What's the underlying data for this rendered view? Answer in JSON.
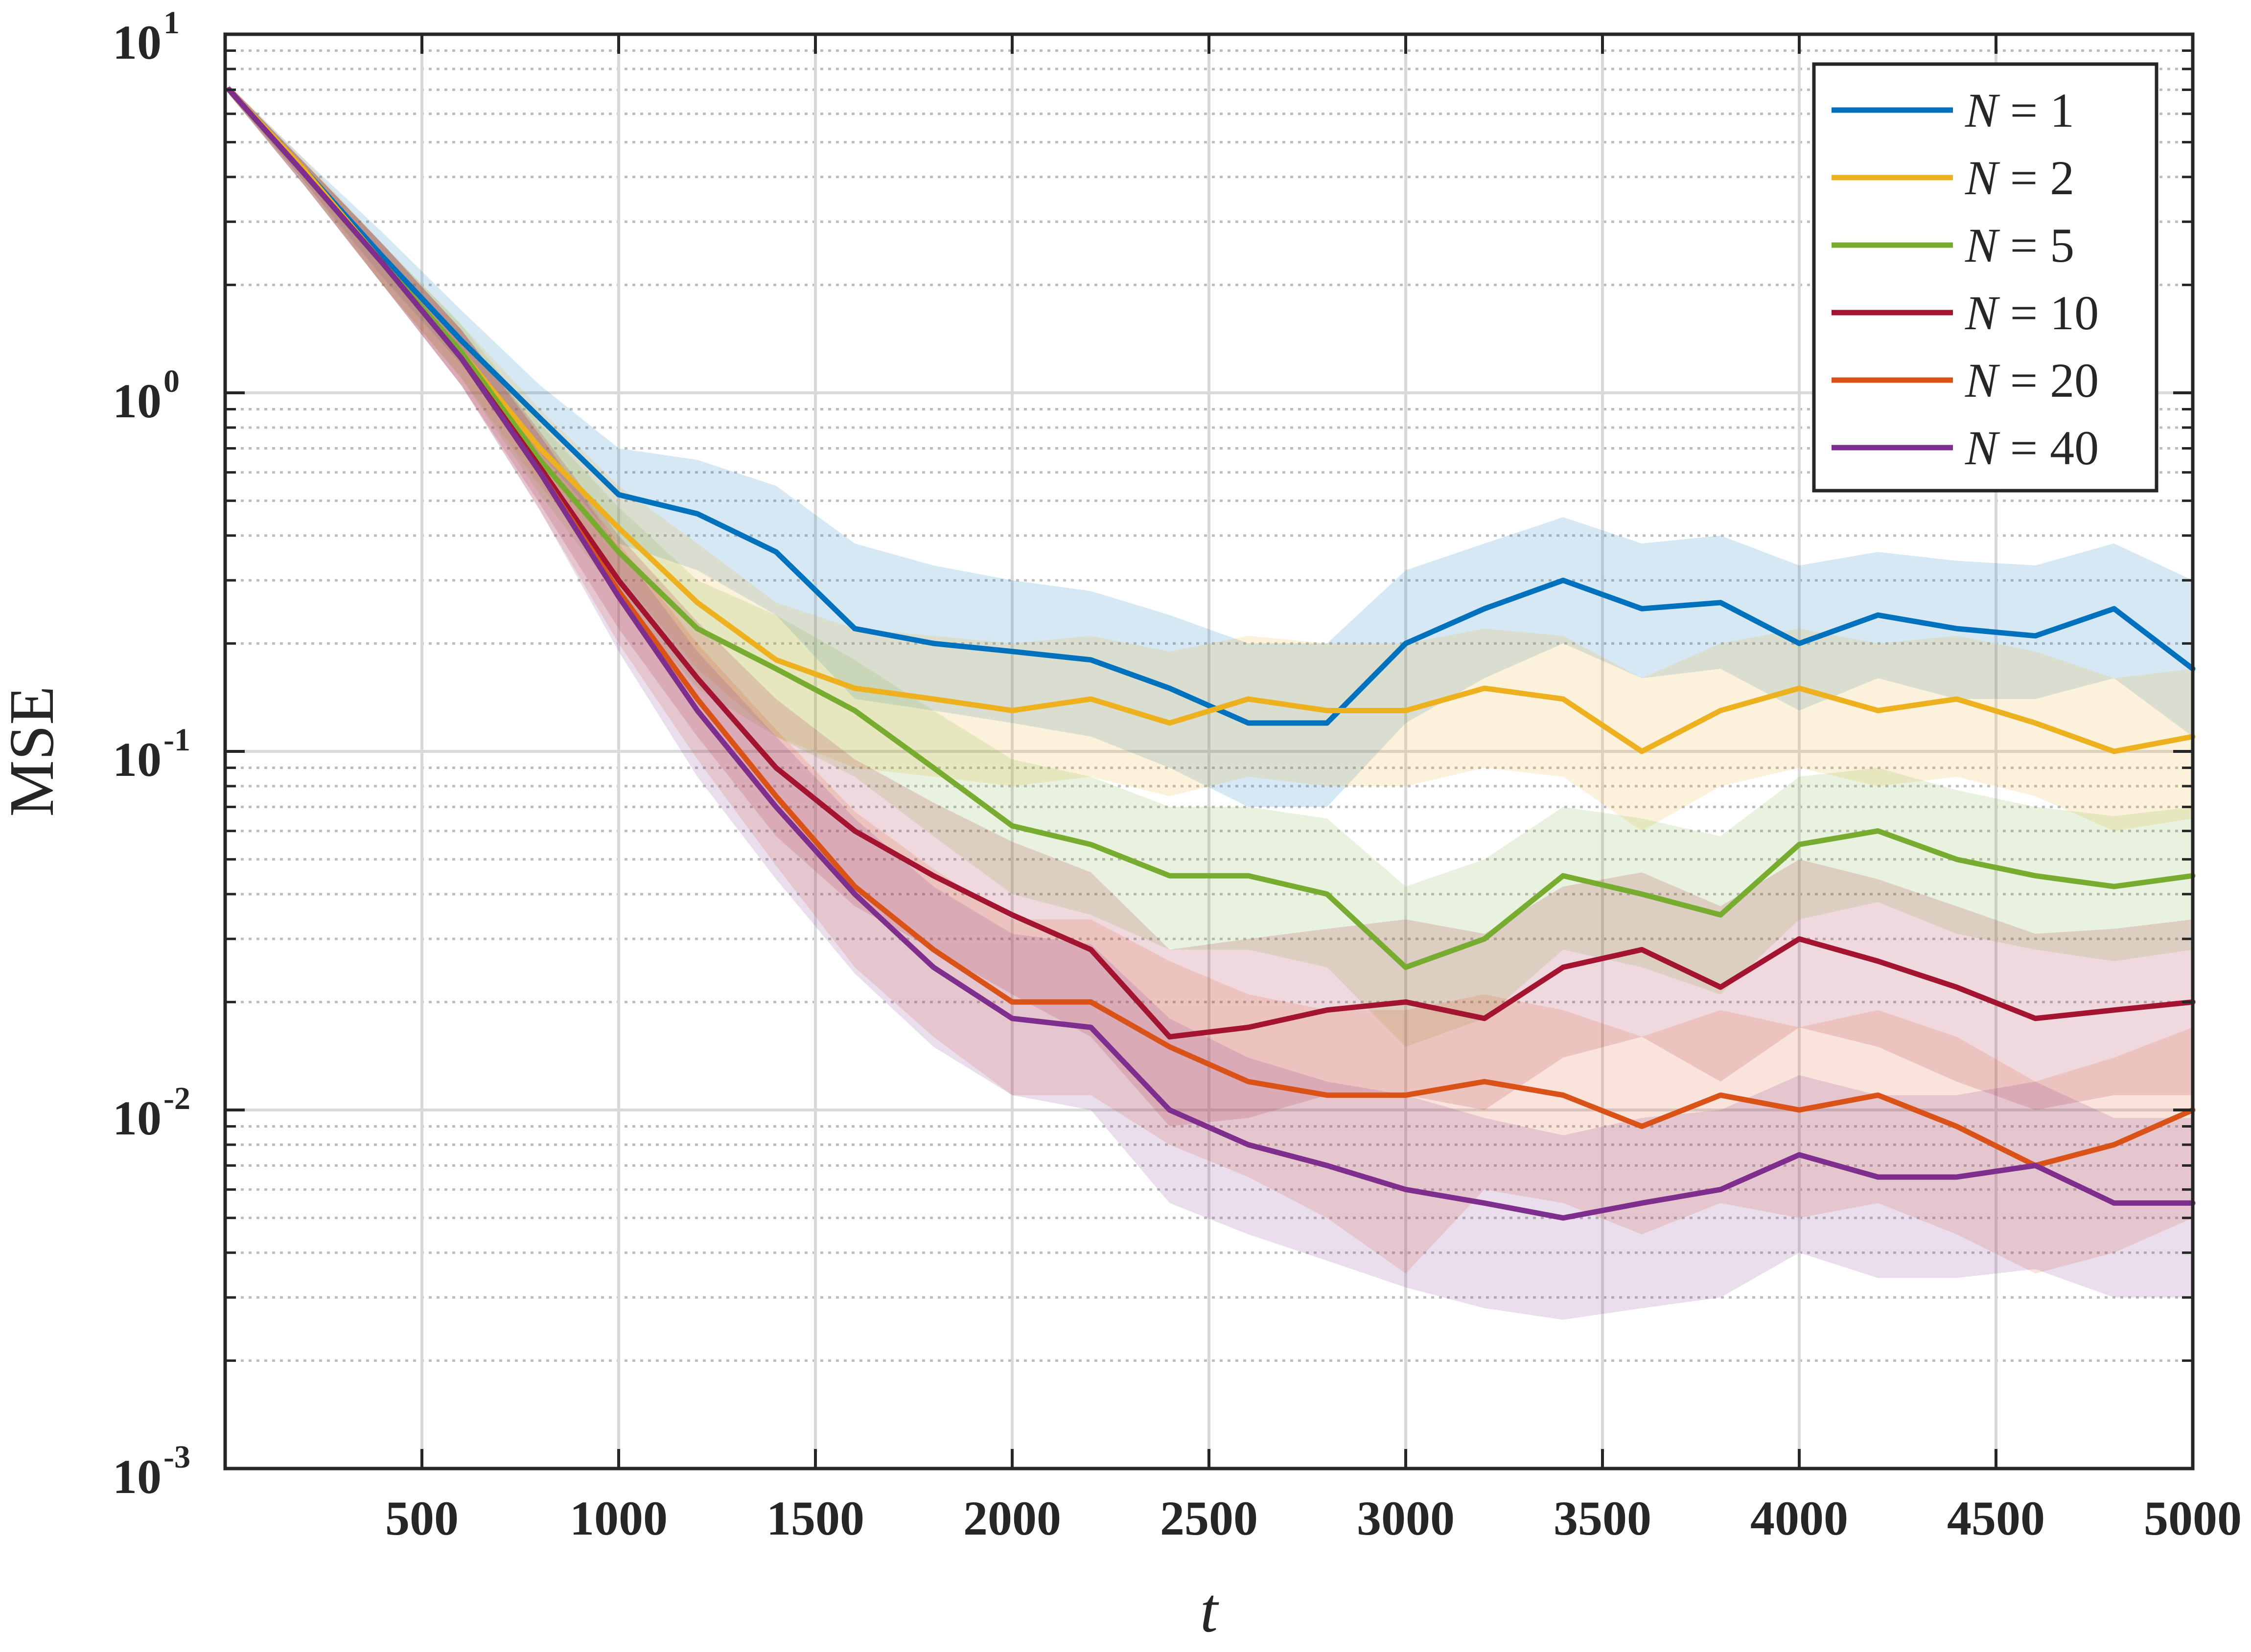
{
  "chart_data": {
    "type": "line",
    "xlabel": "t",
    "ylabel": "MSE",
    "xlim": [
      0,
      5000
    ],
    "ylim": [
      0.001,
      10
    ],
    "yscale": "log",
    "x_ticks": [
      500,
      1000,
      1500,
      2000,
      2500,
      3000,
      3500,
      4000,
      4500,
      5000
    ],
    "x_tick_labels": [
      "500",
      "1000",
      "1500",
      "2000",
      "2500",
      "3000",
      "3500",
      "4000",
      "4500",
      "5000"
    ],
    "y_ticks": [
      {
        "value": 10,
        "base": "10",
        "exp": "1"
      },
      {
        "value": 1,
        "base": "10",
        "exp": "0"
      },
      {
        "value": 0.1,
        "base": "10",
        "exp": "-1"
      },
      {
        "value": 0.01,
        "base": "10",
        "exp": "-2"
      },
      {
        "value": 0.001,
        "base": "10",
        "exp": "-3"
      }
    ],
    "grid": "major-solid-minor-dotted",
    "legend": {
      "position": "top-right"
    },
    "x": [
      10,
      200,
      400,
      600,
      800,
      1000,
      1200,
      1400,
      1600,
      1800,
      2000,
      2200,
      2400,
      2600,
      2800,
      3000,
      3200,
      3400,
      3600,
      3800,
      4000,
      4200,
      4400,
      4600,
      4800,
      5000
    ],
    "series": [
      {
        "name": "N = 1",
        "legend_lhs": "N",
        "legend_rhs": "1",
        "color": "#0072BD",
        "values": [
          7.0,
          4.2,
          2.4,
          1.4,
          0.85,
          0.52,
          0.46,
          0.36,
          0.22,
          0.2,
          0.19,
          0.18,
          0.15,
          0.12,
          0.12,
          0.2,
          0.25,
          0.3,
          0.25,
          0.26,
          0.2,
          0.24,
          0.22,
          0.21,
          0.25,
          0.17
        ],
        "band_upper": [
          7.2,
          4.5,
          2.8,
          1.7,
          1.05,
          0.7,
          0.65,
          0.55,
          0.38,
          0.33,
          0.3,
          0.28,
          0.24,
          0.2,
          0.2,
          0.32,
          0.38,
          0.45,
          0.38,
          0.4,
          0.33,
          0.36,
          0.34,
          0.33,
          0.38,
          0.3
        ],
        "band_lower": [
          6.8,
          3.9,
          2.1,
          1.2,
          0.68,
          0.38,
          0.32,
          0.24,
          0.14,
          0.13,
          0.12,
          0.11,
          0.09,
          0.07,
          0.07,
          0.12,
          0.16,
          0.2,
          0.16,
          0.17,
          0.13,
          0.16,
          0.14,
          0.14,
          0.16,
          0.11
        ]
      },
      {
        "name": "N = 2",
        "legend_lhs": "N",
        "legend_rhs": "2",
        "color": "#EDB120",
        "values": [
          7.0,
          4.2,
          2.3,
          1.3,
          0.7,
          0.42,
          0.26,
          0.18,
          0.15,
          0.14,
          0.13,
          0.14,
          0.12,
          0.14,
          0.13,
          0.13,
          0.15,
          0.14,
          0.1,
          0.13,
          0.15,
          0.13,
          0.14,
          0.12,
          0.1,
          0.11
        ],
        "band_upper": [
          7.2,
          4.5,
          2.6,
          1.55,
          0.9,
          0.55,
          0.38,
          0.26,
          0.22,
          0.21,
          0.2,
          0.21,
          0.19,
          0.21,
          0.2,
          0.2,
          0.22,
          0.21,
          0.16,
          0.2,
          0.22,
          0.2,
          0.21,
          0.19,
          0.16,
          0.17
        ],
        "band_lower": [
          6.8,
          3.9,
          2.0,
          1.1,
          0.55,
          0.31,
          0.17,
          0.11,
          0.09,
          0.085,
          0.08,
          0.085,
          0.075,
          0.085,
          0.08,
          0.08,
          0.09,
          0.085,
          0.06,
          0.08,
          0.09,
          0.08,
          0.085,
          0.075,
          0.06,
          0.065
        ]
      },
      {
        "name": "N = 5",
        "legend_lhs": "N",
        "legend_rhs": "5",
        "color": "#77AC30",
        "values": [
          7.0,
          4.1,
          2.3,
          1.3,
          0.65,
          0.36,
          0.22,
          0.17,
          0.13,
          0.09,
          0.062,
          0.055,
          0.045,
          0.045,
          0.04,
          0.025,
          0.03,
          0.045,
          0.04,
          0.035,
          0.055,
          0.06,
          0.05,
          0.045,
          0.042,
          0.045
        ],
        "band_upper": [
          7.2,
          4.4,
          2.6,
          1.55,
          0.82,
          0.48,
          0.3,
          0.24,
          0.18,
          0.13,
          0.095,
          0.085,
          0.07,
          0.07,
          0.065,
          0.042,
          0.05,
          0.07,
          0.065,
          0.058,
          0.085,
          0.09,
          0.078,
          0.07,
          0.066,
          0.07
        ],
        "band_lower": [
          6.8,
          3.8,
          2.0,
          1.1,
          0.52,
          0.27,
          0.15,
          0.11,
          0.085,
          0.058,
          0.04,
          0.035,
          0.028,
          0.028,
          0.025,
          0.015,
          0.018,
          0.028,
          0.025,
          0.021,
          0.034,
          0.038,
          0.031,
          0.028,
          0.026,
          0.028
        ]
      },
      {
        "name": "N = 10",
        "legend_lhs": "N",
        "legend_rhs": "10",
        "color": "#A2142F",
        "values": [
          7.0,
          4.1,
          2.3,
          1.25,
          0.62,
          0.3,
          0.16,
          0.09,
          0.06,
          0.045,
          0.035,
          0.028,
          0.016,
          0.017,
          0.019,
          0.02,
          0.018,
          0.025,
          0.028,
          0.022,
          0.03,
          0.026,
          0.022,
          0.018,
          0.019,
          0.02
        ],
        "band_upper": [
          7.2,
          4.4,
          2.6,
          1.5,
          0.78,
          0.4,
          0.23,
          0.14,
          0.095,
          0.072,
          0.056,
          0.046,
          0.028,
          0.03,
          0.032,
          0.034,
          0.031,
          0.042,
          0.046,
          0.037,
          0.05,
          0.044,
          0.037,
          0.031,
          0.032,
          0.034
        ],
        "band_lower": [
          6.8,
          3.8,
          2.0,
          1.05,
          0.49,
          0.22,
          0.11,
          0.058,
          0.037,
          0.028,
          0.021,
          0.016,
          0.009,
          0.0095,
          0.011,
          0.011,
          0.01,
          0.014,
          0.016,
          0.012,
          0.017,
          0.015,
          0.012,
          0.01,
          0.011,
          0.011
        ]
      },
      {
        "name": "N = 20",
        "legend_lhs": "N",
        "legend_rhs": "20",
        "color": "#D95319",
        "values": [
          7.0,
          4.1,
          2.3,
          1.25,
          0.6,
          0.28,
          0.14,
          0.075,
          0.042,
          0.028,
          0.02,
          0.02,
          0.015,
          0.012,
          0.011,
          0.011,
          0.012,
          0.011,
          0.009,
          0.011,
          0.01,
          0.011,
          0.009,
          0.007,
          0.008,
          0.01
        ],
        "band_upper": [
          7.2,
          4.4,
          2.6,
          1.5,
          0.76,
          0.38,
          0.2,
          0.115,
          0.068,
          0.047,
          0.034,
          0.034,
          0.026,
          0.021,
          0.019,
          0.019,
          0.021,
          0.019,
          0.016,
          0.019,
          0.017,
          0.019,
          0.016,
          0.012,
          0.014,
          0.017
        ],
        "band_lower": [
          6.8,
          3.8,
          2.0,
          1.05,
          0.47,
          0.2,
          0.095,
          0.048,
          0.025,
          0.016,
          0.011,
          0.011,
          0.008,
          0.0065,
          0.005,
          0.0035,
          0.006,
          0.0055,
          0.0045,
          0.0055,
          0.005,
          0.0055,
          0.0045,
          0.0035,
          0.004,
          0.005
        ]
      },
      {
        "name": "N = 40",
        "legend_lhs": "N",
        "legend_rhs": "40",
        "color": "#7E2F8E",
        "values": [
          7.0,
          4.1,
          2.3,
          1.25,
          0.6,
          0.27,
          0.13,
          0.07,
          0.04,
          0.025,
          0.018,
          0.017,
          0.01,
          0.008,
          0.007,
          0.006,
          0.0055,
          0.005,
          0.0055,
          0.006,
          0.0075,
          0.0065,
          0.0065,
          0.007,
          0.0055,
          0.0055
        ],
        "band_upper": [
          7.2,
          4.4,
          2.6,
          1.5,
          0.76,
          0.37,
          0.19,
          0.11,
          0.065,
          0.042,
          0.031,
          0.029,
          0.018,
          0.014,
          0.012,
          0.011,
          0.0095,
          0.0085,
          0.0095,
          0.01,
          0.0125,
          0.011,
          0.011,
          0.012,
          0.0095,
          0.0095
        ],
        "band_lower": [
          6.8,
          3.8,
          2.0,
          1.05,
          0.47,
          0.19,
          0.085,
          0.044,
          0.024,
          0.015,
          0.011,
          0.01,
          0.0055,
          0.0045,
          0.0038,
          0.0032,
          0.0028,
          0.0026,
          0.0028,
          0.003,
          0.004,
          0.0034,
          0.0034,
          0.0036,
          0.003,
          0.003
        ]
      }
    ]
  }
}
